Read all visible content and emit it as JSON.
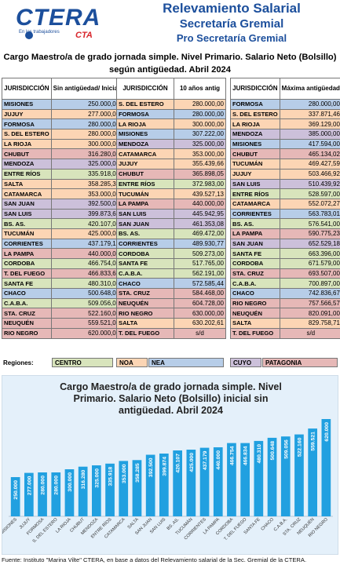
{
  "header": {
    "logo_text": "CTERA",
    "logo_sub": "En los trabajadores",
    "logo_cta": "CTA",
    "title1": "Relevamiento Salarial",
    "title2": "Secretaría Gremial",
    "title3": "Pro Secretaría Gremial"
  },
  "subtitle": "Cargo Maestro/a de grado jornada simple. Nivel Primario. Salario Neto (Bolsillo) según antigüedad. Abril 2024",
  "colors": {
    "brand_blue": "#1c4f9c",
    "bar_blue": "#21a0e0",
    "CENTRO": "#d8e4bc",
    "NOA": "#fcd5b4",
    "NEA": "#b7cde8",
    "CUYO": "#ccc0da",
    "PATAGONIA": "#e6b8b7"
  },
  "tables": [
    {
      "headers": [
        "JURISDICCIÓN",
        "Sin antigüedad/ Inicial"
      ],
      "rows": [
        {
          "j": "MISIONES",
          "v": "250.000,00",
          "r": "NEA"
        },
        {
          "j": "JUJUY",
          "v": "277.000,00",
          "r": "NOA"
        },
        {
          "j": "FORMOSA",
          "v": "280.000,00",
          "r": "NEA"
        },
        {
          "j": "S. DEL ESTERO",
          "v": "280.000,00",
          "r": "NOA"
        },
        {
          "j": "LA RIOJA",
          "v": "300.000,00",
          "r": "NOA"
        },
        {
          "j": "CHUBUT",
          "v": "316.280,06",
          "r": "PATAGONIA"
        },
        {
          "j": "MENDOZA",
          "v": "325.000,00",
          "r": "CUYO"
        },
        {
          "j": "ENTRE RÍOS",
          "v": "335.918,00",
          "r": "CENTRO"
        },
        {
          "j": "SALTA",
          "v": "358.285,36",
          "r": "NOA"
        },
        {
          "j": "CATAMARCA",
          "v": "353.000,00",
          "r": "NOA"
        },
        {
          "j": "SAN JUAN",
          "v": "392.500,00",
          "r": "CUYO"
        },
        {
          "j": "SAN LUIS",
          "v": "399.873,69",
          "r": "CUYO"
        },
        {
          "j": "BS. AS.",
          "v": "420.107,00",
          "r": "CENTRO"
        },
        {
          "j": "TUCUMÁN",
          "v": "425.000,00",
          "r": "NOA"
        },
        {
          "j": "CORRIENTES",
          "v": "437.179,17",
          "r": "NEA"
        },
        {
          "j": "LA PAMPA",
          "v": "440.000,00",
          "r": "PATAGONIA"
        },
        {
          "j": "CORDOBA",
          "v": "466.754,00",
          "r": "CENTRO"
        },
        {
          "j": "T. DEL FUEGO",
          "v": "466.833,66",
          "r": "PATAGONIA"
        },
        {
          "j": "SANTA FE",
          "v": "480.310,00",
          "r": "CENTRO"
        },
        {
          "j": "CHACO",
          "v": "500.648,00",
          "r": "NEA"
        },
        {
          "j": "C.A.B.A.",
          "v": "509.056,00",
          "r": "CENTRO"
        },
        {
          "j": "STA. CRUZ",
          "v": "522.160,00",
          "r": "PATAGONIA"
        },
        {
          "j": "NEUQUÉN",
          "v": "559.521,00",
          "r": "PATAGONIA"
        },
        {
          "j": "RIO NEGRO",
          "v": "620.000,00",
          "r": "PATAGONIA"
        }
      ]
    },
    {
      "headers": [
        "JURISDICCIÓN",
        "10 años antig"
      ],
      "rows": [
        {
          "j": "S. DEL ESTERO",
          "v": "280.000,00",
          "r": "NOA"
        },
        {
          "j": "FORMOSA",
          "v": "280.000,00",
          "r": "NEA"
        },
        {
          "j": "LA RIOJA",
          "v": "300.000,00",
          "r": "NOA"
        },
        {
          "j": "MISIONES",
          "v": "307.222,00",
          "r": "NEA"
        },
        {
          "j": "MENDOZA",
          "v": "325.000,00",
          "r": "CUYO"
        },
        {
          "j": "CATAMARCA",
          "v": "353.000,00",
          "r": "NOA"
        },
        {
          "j": "JUJUY",
          "v": "355.439,66",
          "r": "NOA"
        },
        {
          "j": "CHUBUT",
          "v": "365.898,05",
          "r": "PATAGONIA"
        },
        {
          "j": "ENTRE RÍOS",
          "v": "372.983,00",
          "r": "CENTRO"
        },
        {
          "j": "TUCUMÁN",
          "v": "439.527,13",
          "r": "NOA"
        },
        {
          "j": "LA PAMPA",
          "v": "440.000,00",
          "r": "PATAGONIA"
        },
        {
          "j": "SAN LUIS",
          "v": "445.942,95",
          "r": "CUYO"
        },
        {
          "j": "SAN JUAN",
          "v": "461.353,08",
          "r": "CUYO"
        },
        {
          "j": "BS. AS.",
          "v": "469.472,00",
          "r": "CENTRO"
        },
        {
          "j": "CORRIENTES",
          "v": "489.930,77",
          "r": "NEA"
        },
        {
          "j": "CORDOBA",
          "v": "509.273,00",
          "r": "CENTRO"
        },
        {
          "j": "SANTA FE",
          "v": "517.765,00",
          "r": "CENTRO"
        },
        {
          "j": "C.A.B.A.",
          "v": "562.191,00",
          "r": "CENTRO"
        },
        {
          "j": "CHACO",
          "v": "572.585,44",
          "r": "NEA"
        },
        {
          "j": "STA. CRUZ",
          "v": "584.468,00",
          "r": "PATAGONIA"
        },
        {
          "j": "NEUQUÉN",
          "v": "604.728,00",
          "r": "PATAGONIA"
        },
        {
          "j": "RIO NEGRO",
          "v": "630.000,00",
          "r": "PATAGONIA"
        },
        {
          "j": "SALTA",
          "v": "630.202,61",
          "r": "NOA"
        },
        {
          "j": "T. DEL FUEGO",
          "v": "s/d",
          "r": "PATAGONIA"
        }
      ]
    },
    {
      "headers": [
        "JURISDICCIÓN",
        "Máxima antigüedad"
      ],
      "rows": [
        {
          "j": "FORMOSA",
          "v": "280.000,00",
          "r": "NEA"
        },
        {
          "j": "S. DEL ESTERO",
          "v": "337.871,46",
          "r": "NOA"
        },
        {
          "j": "LA RIOJA",
          "v": "369.129,00",
          "r": "NOA"
        },
        {
          "j": "MENDOZA",
          "v": "385.000,00",
          "r": "CUYO"
        },
        {
          "j": "MISIONES",
          "v": "417.594,00",
          "r": "NEA"
        },
        {
          "j": "CHUBUT",
          "v": "465.134,02",
          "r": "PATAGONIA"
        },
        {
          "j": "TUCUMÁN",
          "v": "469.427,59",
          "r": "NOA"
        },
        {
          "j": "JUJUY",
          "v": "503.466,92",
          "r": "NOA"
        },
        {
          "j": "SAN LUIS",
          "v": "510.439,92",
          "r": "CUYO"
        },
        {
          "j": "ENTRE RÍOS",
          "v": "528.597,00",
          "r": "CENTRO"
        },
        {
          "j": "CATAMARCA",
          "v": "552.072,27",
          "r": "NOA"
        },
        {
          "j": "CORRIENTES",
          "v": "563.783,01",
          "r": "NEA"
        },
        {
          "j": "BS. AS.",
          "v": "576.541,00",
          "r": "CENTRO"
        },
        {
          "j": "LA PAMPA",
          "v": "590.775,23",
          "r": "PATAGONIA"
        },
        {
          "j": "SAN JUAN",
          "v": "652.529,18",
          "r": "CUYO"
        },
        {
          "j": "SANTA FE",
          "v": "663.396,00",
          "r": "CENTRO"
        },
        {
          "j": "CORDOBA",
          "v": "671.579,00",
          "r": "CENTRO"
        },
        {
          "j": "STA. CRUZ",
          "v": "693.507,00",
          "r": "PATAGONIA"
        },
        {
          "j": "C.A.B.A.",
          "v": "700.897,00",
          "r": "CENTRO"
        },
        {
          "j": "CHACO",
          "v": "742.836,67",
          "r": "NEA"
        },
        {
          "j": "RIO NEGRO",
          "v": "757.566,57",
          "r": "PATAGONIA"
        },
        {
          "j": "NEUQUÉN",
          "v": "820.091,00",
          "r": "PATAGONIA"
        },
        {
          "j": "SALTA",
          "v": "829.758,71",
          "r": "NOA"
        },
        {
          "j": "T. DEL FUEGO",
          "v": "s/d",
          "r": "PATAGONIA"
        }
      ]
    }
  ],
  "regions": {
    "label": "Regiones:",
    "items": [
      "CENTRO",
      "NOA",
      "NEA",
      "CUYO",
      "PATAGONIA"
    ]
  },
  "chart_data": {
    "type": "bar",
    "title": "Cargo Maestro/a de grado jornada simple. Nivel Primario. Salario Neto (Bolsillo) inicial sin antigüedad. Abril 2024",
    "title_lines": [
      "Cargo Maestro/a de grado jornada simple. Nivel",
      "Primario. Salario Neto (Bolsillo) inicial sin",
      "antigüedad. Abril 2024"
    ],
    "categories": [
      "MISIONES",
      "JUJUY",
      "FORMOSA",
      "S. DEL ESTERO",
      "LA RIOJA",
      "CHUBUT",
      "MENDOZA",
      "ENTRE RÍOS",
      "CATAMARCA",
      "SALTA",
      "SAN JUAN",
      "SAN LUIS",
      "BS. AS.",
      "TUCUMÁN",
      "CORRIENTES",
      "LA PAMPA",
      "CORDOBA",
      "T. DEL FUEGO",
      "SANTA FE",
      "CHACO",
      "C.A.B.A.",
      "STA. CRUZ",
      "NEUQUÉN",
      "RIO NEGRO"
    ],
    "values": [
      250000,
      277000,
      280000,
      280000,
      300000,
      316280,
      325000,
      335918,
      353000,
      358285,
      392500,
      399874,
      420107,
      425000,
      437179,
      440000,
      466754,
      466834,
      480310,
      500648,
      509056,
      522160,
      559521,
      620000
    ],
    "labels": [
      "250.000",
      "277.000",
      "280.000",
      "280.000",
      "300.000",
      "316.280",
      "325.000",
      "335.918",
      "353.000",
      "358.285",
      "392.500",
      "399.874",
      "420.107",
      "425.000",
      "437.179",
      "440.000",
      "466.754",
      "466.834",
      "480.310",
      "500.648",
      "509.056",
      "522.160",
      "559.521",
      "620.000"
    ],
    "ylim": [
      0,
      640000
    ],
    "grid": false,
    "legend": "none"
  },
  "footer": "Fuente: Instituto \"Marina Vilte\" CTERA, en base a datos del Relevamiento salarial de la Sec. Gremial de la CTERA."
}
